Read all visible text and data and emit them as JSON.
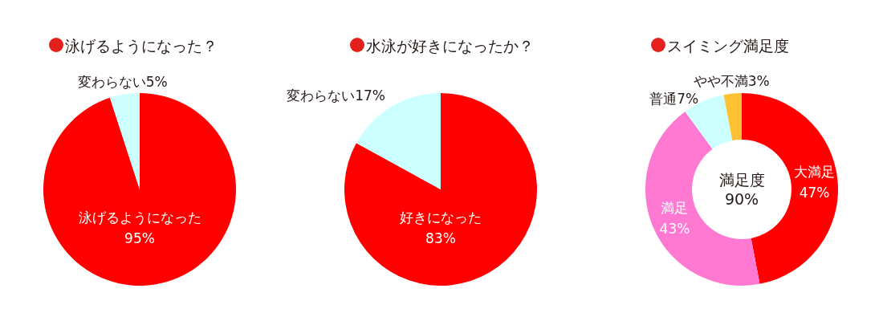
{
  "chart_data": [
    {
      "type": "pie",
      "title": "泳げるようになった？",
      "categories": [
        "泳げるようになった",
        "変わらない"
      ],
      "values": [
        95,
        5
      ],
      "colors": [
        "#ff0000",
        "#ccffff"
      ],
      "value_labels": [
        "95%",
        "5%"
      ]
    },
    {
      "type": "pie",
      "title": "水泳が好きになったか？",
      "categories": [
        "好きになった",
        "変わらない"
      ],
      "values": [
        83,
        17
      ],
      "colors": [
        "#ff0000",
        "#ccffff"
      ],
      "value_labels": [
        "83%",
        "17%"
      ]
    },
    {
      "type": "donut",
      "title": "スイミング満足度",
      "categories": [
        "大満足",
        "満足",
        "普通",
        "やや不満"
      ],
      "values": [
        47,
        43,
        7,
        3
      ],
      "colors": [
        "#ff0000",
        "#ff78d2",
        "#ccffff",
        "#ffc033"
      ],
      "value_labels": [
        "47%",
        "43%",
        "7%",
        "3%"
      ],
      "annotations": [
        "満足度\n90%"
      ]
    }
  ]
}
